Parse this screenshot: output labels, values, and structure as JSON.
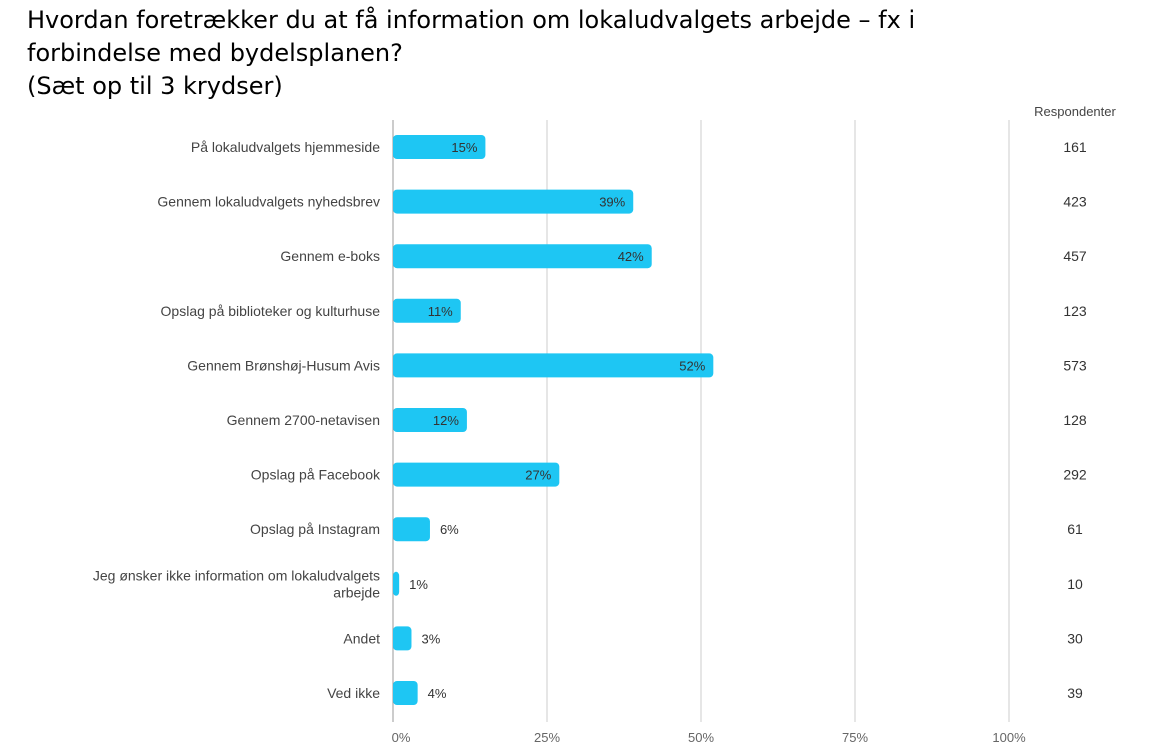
{
  "title_lines": [
    "Hvordan foretrækker du at få information om lokaludvalgets arbejde – fx i",
    "forbindelse med bydelsplanen?",
    "(Sæt op til 3 krydser)"
  ],
  "colors": {
    "bar": "#1ec6f3",
    "grid": "#cccccc",
    "axis": "#999999"
  },
  "chart_data": {
    "type": "bar",
    "orientation": "horizontal",
    "categories": [
      [
        "På lokaludvalgets hjemmeside"
      ],
      [
        "Gennem lokaludvalgets nyhedsbrev"
      ],
      [
        "Gennem e-boks"
      ],
      [
        "Opslag på biblioteker og kulturhuse"
      ],
      [
        "Gennem Brønshøj-Husum Avis"
      ],
      [
        "Gennem 2700-netavisen"
      ],
      [
        "Opslag på Facebook"
      ],
      [
        "Opslag på Instagram"
      ],
      [
        "Jeg ønsker ikke information om lokaludvalgets",
        "arbejde"
      ],
      [
        "Andet"
      ],
      [
        "Ved ikke"
      ]
    ],
    "values": [
      15,
      39,
      42,
      11,
      52,
      12,
      27,
      6,
      1,
      3,
      4
    ],
    "value_labels": [
      "15%",
      "39%",
      "42%",
      "11%",
      "52%",
      "12%",
      "27%",
      "6%",
      "1%",
      "3%",
      "4%"
    ],
    "respondents_header": "Respondenter",
    "respondents": [
      "161",
      "423",
      "457",
      "123",
      "573",
      "128",
      "292",
      "61",
      "10",
      "30",
      "39"
    ],
    "x_ticks": [
      0,
      25,
      50,
      75,
      100
    ],
    "x_tick_labels": [
      "0%",
      "25%",
      "50%",
      "75%",
      "100%"
    ],
    "xlim": [
      0,
      100
    ],
    "grid": true
  }
}
